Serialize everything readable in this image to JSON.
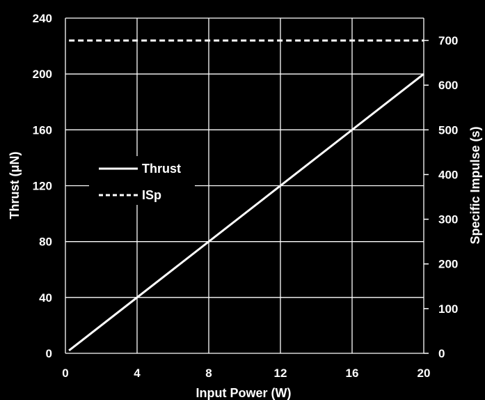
{
  "chart_data": {
    "type": "line",
    "xlabel": "Input Power (W)",
    "ylabel": "Thrust (μN)",
    "y2label": "Specific Impulse (s)",
    "xlim": [
      0,
      20
    ],
    "ylim": [
      0,
      240
    ],
    "y2lim": [
      0,
      750
    ],
    "xticks": [
      "0",
      "4",
      "8",
      "12",
      "16",
      "20"
    ],
    "xtick_values": [
      0,
      4,
      8,
      12,
      16,
      20
    ],
    "yticks": [
      "0",
      "40",
      "80",
      "120",
      "160",
      "200",
      "240"
    ],
    "ytick_values": [
      0,
      40,
      80,
      120,
      160,
      200,
      240
    ],
    "y2ticks": [
      "0",
      "100",
      "200",
      "300",
      "400",
      "500",
      "600",
      "700"
    ],
    "y2tick_values": [
      0,
      100,
      200,
      300,
      400,
      500,
      600,
      700
    ],
    "grid": true,
    "legend_position": "center-left",
    "colors": {
      "background": "#000000",
      "foreground": "#ffffff"
    },
    "series": [
      {
        "name": "Thrust",
        "axis": "left",
        "style": "solid",
        "x": [
          0.2,
          20
        ],
        "y": [
          2,
          200
        ]
      },
      {
        "name": "ISp",
        "axis": "right",
        "style": "dashed",
        "x": [
          0.2,
          20
        ],
        "y": [
          700,
          700
        ]
      }
    ]
  }
}
